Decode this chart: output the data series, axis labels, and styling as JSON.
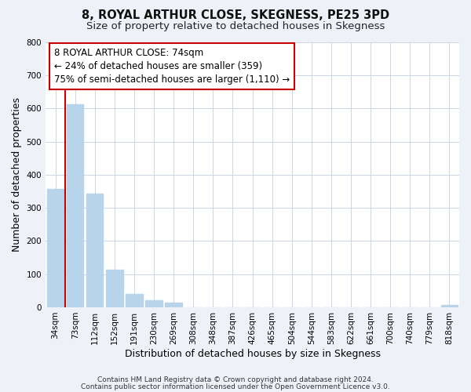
{
  "title": "8, ROYAL ARTHUR CLOSE, SKEGNESS, PE25 3PD",
  "subtitle": "Size of property relative to detached houses in Skegness",
  "xlabel": "Distribution of detached houses by size in Skegness",
  "ylabel": "Number of detached properties",
  "bar_labels": [
    "34sqm",
    "73sqm",
    "112sqm",
    "152sqm",
    "191sqm",
    "230sqm",
    "269sqm",
    "308sqm",
    "348sqm",
    "387sqm",
    "426sqm",
    "465sqm",
    "504sqm",
    "544sqm",
    "583sqm",
    "622sqm",
    "661sqm",
    "700sqm",
    "740sqm",
    "779sqm",
    "818sqm"
  ],
  "bar_values": [
    358,
    612,
    342,
    113,
    40,
    22,
    14,
    0,
    0,
    0,
    0,
    0,
    0,
    0,
    0,
    0,
    0,
    0,
    0,
    0,
    7
  ],
  "bar_color": "#b8d4ea",
  "ylim": [
    0,
    800
  ],
  "yticks": [
    0,
    100,
    200,
    300,
    400,
    500,
    600,
    700,
    800
  ],
  "vline_x": 0.5,
  "vline_color": "#cc0000",
  "annotation_line1": "8 ROYAL ARTHUR CLOSE: 74sqm",
  "annotation_line2": "← 24% of detached houses are smaller (359)",
  "annotation_line3": "75% of semi-detached houses are larger (1,110) →",
  "footer_line1": "Contains HM Land Registry data © Crown copyright and database right 2024.",
  "footer_line2": "Contains public sector information licensed under the Open Government Licence v3.0.",
  "bg_color": "#eef2f8",
  "plot_bg_color": "#ffffff",
  "grid_color": "#ccd6e8",
  "title_fontsize": 10.5,
  "subtitle_fontsize": 9.5,
  "axis_label_fontsize": 9,
  "tick_fontsize": 7.5,
  "footer_fontsize": 6.5
}
